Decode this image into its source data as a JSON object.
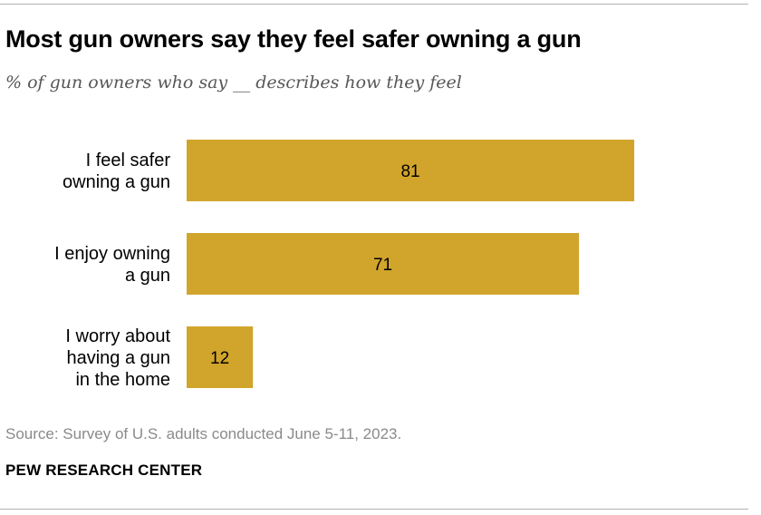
{
  "header": {
    "title": "Most gun owners say they feel safer owning a gun",
    "subtitle": "% of gun owners who say __ describes how they feel"
  },
  "footer": {
    "source": "Source: Survey of U.S. adults conducted June 5-11, 2023.",
    "org": "PEW RESEARCH CENTER"
  },
  "colors": {
    "bar": "#D1A52C"
  },
  "chart_data": {
    "type": "bar",
    "orientation": "horizontal",
    "categories": [
      [
        "I feel safer",
        "owning a gun"
      ],
      [
        "I enjoy owning",
        "a gun"
      ],
      [
        "I worry about",
        "having a gun",
        "in the home"
      ]
    ],
    "values": [
      81,
      71,
      12
    ],
    "xlim": [
      0,
      100
    ],
    "grid": false,
    "legend": "none"
  }
}
